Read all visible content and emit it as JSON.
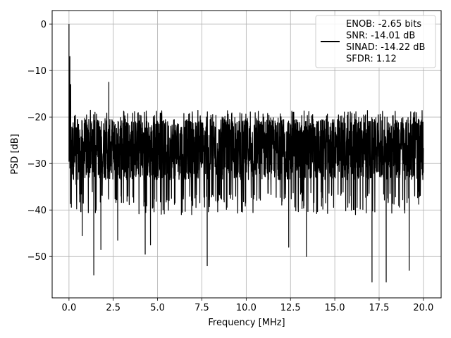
{
  "chart_data": {
    "type": "line",
    "title": "",
    "xlabel": "Frequency [MHz]",
    "ylabel": "PSD [dB]",
    "xlim": [
      -0.95,
      21.0
    ],
    "ylim": [
      -58.9,
      2.9
    ],
    "xticks": [
      0.0,
      2.5,
      5.0,
      7.5,
      10.0,
      12.5,
      15.0,
      17.5,
      20.0
    ],
    "xtick_labels": [
      "0.0",
      "2.5",
      "5.0",
      "7.5",
      "10.0",
      "12.5",
      "15.0",
      "17.5",
      "20.0"
    ],
    "yticks": [
      0,
      -10,
      -20,
      -30,
      -40,
      -50
    ],
    "ytick_labels": [
      "0",
      "−10",
      "−20",
      "−30",
      "−40",
      "−50"
    ],
    "grid": true,
    "legend": {
      "placement": "top-right",
      "entries": [
        "ENOB: -2.65 bits",
        "SNR: -14.01 dB",
        "SINAD: -14.22 dB",
        "SFDR: 1.12"
      ]
    },
    "series": [
      {
        "color": "#000000",
        "style": "dense noise spectrum",
        "x_range": [
          0.0,
          20.0
        ],
        "peak": {
          "x": 0.0,
          "y": 0.0
        },
        "approx_upper_envelope_db": -20,
        "approx_lower_envelope_db": -40,
        "approx_median_db": -27,
        "notable_points": [
          {
            "x": 0.0,
            "y": 0.0
          },
          {
            "x": 0.05,
            "y": -7.0
          },
          {
            "x": 0.1,
            "y": -13.0
          },
          {
            "x": 0.15,
            "y": -25.0
          },
          {
            "x": 0.4,
            "y": -34.5
          },
          {
            "x": 0.75,
            "y": -45.5
          },
          {
            "x": 1.4,
            "y": -54.0
          },
          {
            "x": 1.8,
            "y": -48.5
          },
          {
            "x": 2.25,
            "y": -12.5
          },
          {
            "x": 2.75,
            "y": -46.5
          },
          {
            "x": 4.3,
            "y": -49.5
          },
          {
            "x": 4.6,
            "y": -47.5
          },
          {
            "x": 7.8,
            "y": -52.0
          },
          {
            "x": 12.4,
            "y": -48.0
          },
          {
            "x": 13.4,
            "y": -50.0
          },
          {
            "x": 17.1,
            "y": -55.5
          },
          {
            "x": 17.9,
            "y": -55.5
          },
          {
            "x": 19.2,
            "y": -53.0
          }
        ]
      }
    ]
  }
}
